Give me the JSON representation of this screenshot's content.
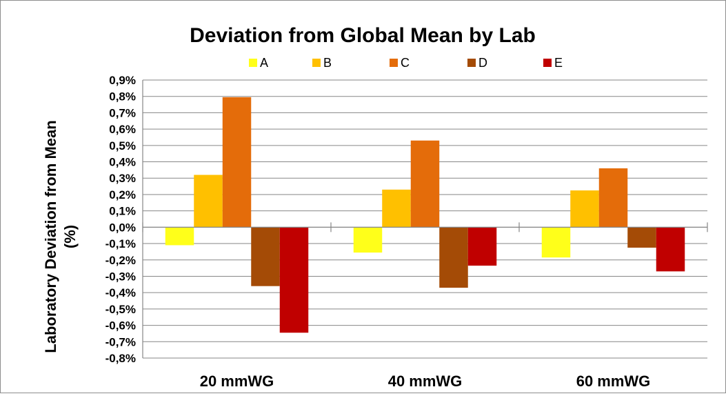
{
  "chart_data": {
    "type": "bar",
    "title": "Deviation from Global Mean by Lab",
    "xlabel": "",
    "ylabel": [
      "Laboratory Deviation from Mean",
      "(%)"
    ],
    "categories": [
      "20 mmWG",
      "40 mmWG",
      "60 mmWG"
    ],
    "series": [
      {
        "name": "A",
        "color": "#ffff1a",
        "values": [
          -0.11,
          -0.155,
          -0.185
        ]
      },
      {
        "name": "B",
        "color": "#ffc000",
        "values": [
          0.32,
          0.23,
          0.225
        ]
      },
      {
        "name": "C",
        "color": "#e46c0a",
        "values": [
          0.795,
          0.53,
          0.36
        ]
      },
      {
        "name": "D",
        "color": "#a44b06",
        "values": [
          -0.36,
          -0.37,
          -0.125
        ]
      },
      {
        "name": "E",
        "color": "#c00000",
        "values": [
          -0.645,
          -0.235,
          -0.27
        ]
      }
    ],
    "ylim": [
      -0.8,
      0.9
    ],
    "ytick_step": 0.1,
    "ytick_labels": [
      "-0,8%",
      "-0,7%",
      "-0,6%",
      "-0,5%",
      "-0,4%",
      "-0,3%",
      "-0,2%",
      "-0,1%",
      "0,0%",
      "0,1%",
      "0,2%",
      "0,3%",
      "0,4%",
      "0,5%",
      "0,6%",
      "0,7%",
      "0,8%",
      "0,9%"
    ],
    "grid": true,
    "legend_position": "top"
  }
}
